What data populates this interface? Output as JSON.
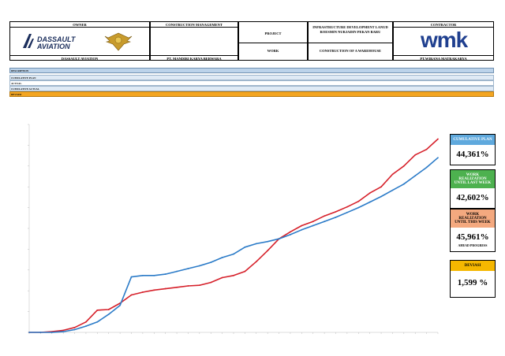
{
  "header": {
    "owner_label": "OWNER",
    "owner_logo_text_1": "DASSAULT",
    "owner_logo_text_2": "AVIATION",
    "owner_name": "DASSAULT AVIATION",
    "cm_label": "CONSTRUCTION MANAGEMENT",
    "cm_name": "PT. MANDIRI KARYA BERWARA",
    "project_label": "PROJECT",
    "project_value": "INFRASTRUCTURE DEVELOPMENT LANUD ROESMIN NURJADIN PEKAN BARU",
    "work_label": "WORK",
    "work_value": "CONSTRUCTION OF A WAREHOUSE",
    "contractor_label": "CONTRACTOR",
    "contractor_logo": "wmk",
    "contractor_name": "PT.WIRANA MATRAKARYA",
    "colors": {
      "owner_logo": "#1b2e5c",
      "contractor_logo": "#1f3f8f"
    }
  },
  "table": {
    "header_label": "DESCRIPTION",
    "rows": [
      {
        "label": "CUMULATIVE PLAN",
        "color": "#dfeaf5"
      },
      {
        "label": "ACTUAL",
        "color": "#ffffff"
      },
      {
        "label": "CUMULATIVE ACTUAL",
        "color": "#dfeaf5"
      },
      {
        "label": "DEVIASI",
        "color": "#f3a521"
      }
    ],
    "colors": {
      "header": "#bcd3ea"
    }
  },
  "side_panel": {
    "plan_title": "CUMULATIVE PLAN",
    "plan_value": "44,361%",
    "last_week_title": "WORK REALIZATION UNTIL LAST WEEK",
    "last_week_value": "42,602%",
    "this_week_title": "WORK REALIZATION UNTIL THIS WEEK",
    "this_week_value": "45,961%",
    "this_week_note": "AHEAD PROGRESS",
    "dev_title": "DEVIASI",
    "dev_value": "1,599 %",
    "colors": {
      "plan": "#5fa9dd",
      "last_week": "#4db14f",
      "this_week": "#f4a97f",
      "dev": "#f5b700"
    }
  },
  "chart_data": {
    "type": "line",
    "x": [
      1,
      2,
      3,
      4,
      5,
      6,
      7,
      8,
      9,
      10,
      11,
      12,
      13,
      14,
      15,
      16,
      17,
      18,
      19,
      20,
      21,
      22,
      23,
      24,
      25,
      26,
      27,
      28,
      29,
      30,
      31,
      32,
      33,
      34,
      35,
      36,
      37
    ],
    "series": [
      {
        "color": "#d6202a",
        "values": [
          0.0,
          0.0,
          0.1,
          0.3,
          0.7,
          1.5,
          3.2,
          3.3,
          4.2,
          5.4,
          5.8,
          6.1,
          6.3,
          6.5,
          6.7,
          6.8,
          7.2,
          7.9,
          8.2,
          8.8,
          10.2,
          11.8,
          13.5,
          14.5,
          15.4,
          16.0,
          16.8,
          17.4,
          18.1,
          18.9,
          20.1,
          21.0,
          22.8,
          24.0,
          25.6,
          26.4,
          27.9
        ]
      },
      {
        "color": "#2b7bc8",
        "values": [
          0.0,
          0.0,
          0.0,
          0.1,
          0.4,
          0.9,
          1.5,
          2.6,
          3.9,
          8.0,
          8.2,
          8.2,
          8.4,
          8.8,
          9.2,
          9.6,
          10.1,
          10.8,
          11.3,
          12.3,
          12.8,
          13.1,
          13.5,
          14.1,
          14.8,
          15.4,
          16.0,
          16.6,
          17.3,
          18.0,
          18.8,
          19.6,
          20.5,
          21.4,
          22.6,
          23.8,
          25.2
        ]
      }
    ],
    "ylim": [
      0,
      30
    ]
  }
}
